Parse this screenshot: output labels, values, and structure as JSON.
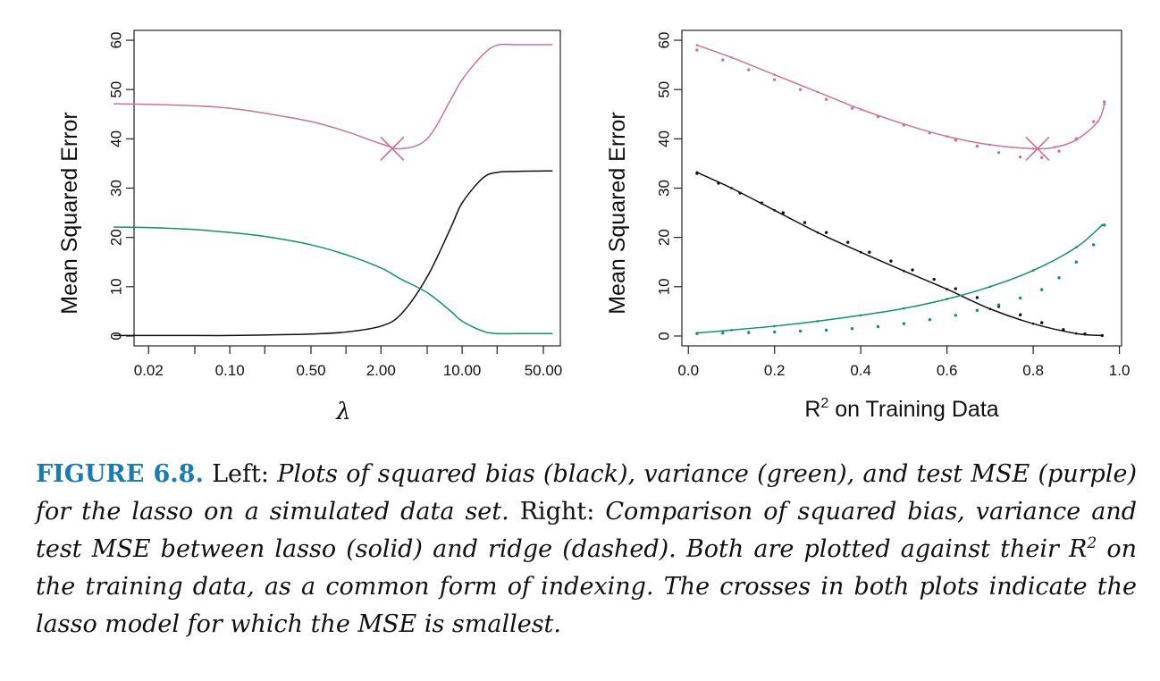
{
  "chart_data": [
    {
      "type": "line",
      "panel": "left",
      "xscale": "log",
      "x": [
        0.01,
        0.02,
        0.05,
        0.1,
        0.2,
        0.5,
        1.0,
        2.0,
        3.0,
        5.0,
        8.0,
        10.0,
        15.0,
        20.0,
        30.0,
        60.0
      ],
      "series": [
        {
          "name": "squared bias",
          "color": "#111111",
          "values": [
            0.1,
            0.1,
            0.1,
            0.1,
            0.2,
            0.4,
            0.8,
            2.0,
            4.5,
            12.0,
            22.0,
            27.0,
            32.0,
            33.2,
            33.4,
            33.5
          ]
        },
        {
          "name": "variance",
          "color": "#11906b",
          "values": [
            22.1,
            22.0,
            21.6,
            21.0,
            20.2,
            18.5,
            16.5,
            13.8,
            11.5,
            8.8,
            5.0,
            3.0,
            1.0,
            0.5,
            0.5,
            0.5
          ]
        },
        {
          "name": "test MSE",
          "color": "#c8739b",
          "values": [
            47.1,
            47.0,
            46.7,
            46.2,
            45.2,
            43.5,
            41.5,
            39.0,
            38.0,
            40.0,
            48.0,
            52.0,
            57.0,
            59.0,
            59.1,
            59.1
          ]
        }
      ],
      "cross": {
        "x": 2.5,
        "y": 38.0,
        "color": "#c8739b"
      },
      "xticks": [
        0.02,
        0.05,
        0.1,
        0.2,
        0.5,
        1.0,
        2.0,
        5.0,
        10.0,
        20.0,
        50.0
      ],
      "xtick_labels": [
        "0.02",
        "0.10",
        "0.50",
        "2.00",
        "10.00",
        "50.00"
      ],
      "xtick_label_values": [
        0.02,
        0.1,
        0.5,
        2.0,
        10.0,
        50.0
      ],
      "yticks": [
        0,
        10,
        20,
        30,
        40,
        50,
        60
      ],
      "xlim": [
        0.015,
        70
      ],
      "ylim": [
        -2,
        62
      ],
      "xlabel": "λ",
      "ylabel": "Mean Squared Error"
    },
    {
      "type": "line",
      "panel": "right",
      "xscale": "linear",
      "series": [
        {
          "name": "squared bias (lasso)",
          "style": "solid",
          "color": "#111111",
          "x": [
            0.02,
            0.1,
            0.2,
            0.3,
            0.4,
            0.5,
            0.6,
            0.7,
            0.8,
            0.9,
            0.96
          ],
          "values": [
            33.2,
            30.0,
            25.5,
            21.0,
            17.0,
            13.2,
            9.5,
            5.5,
            2.5,
            0.5,
            0.1
          ]
        },
        {
          "name": "variance (lasso)",
          "style": "solid",
          "color": "#11906b",
          "x": [
            0.02,
            0.1,
            0.2,
            0.3,
            0.4,
            0.5,
            0.6,
            0.7,
            0.8,
            0.9,
            0.96
          ],
          "values": [
            0.6,
            1.2,
            2.0,
            3.0,
            4.2,
            5.6,
            7.5,
            10.0,
            13.3,
            18.0,
            22.5
          ]
        },
        {
          "name": "test MSE (lasso)",
          "style": "solid",
          "color": "#c8739b",
          "x": [
            0.02,
            0.1,
            0.2,
            0.3,
            0.4,
            0.5,
            0.6,
            0.7,
            0.8,
            0.85,
            0.9,
            0.95,
            0.965
          ],
          "values": [
            59.0,
            56.5,
            53.0,
            49.5,
            46.0,
            43.0,
            40.5,
            38.8,
            38.0,
            38.3,
            39.8,
            43.5,
            47.0
          ]
        },
        {
          "name": "squared bias (ridge)",
          "style": "dotted",
          "color": "#111111",
          "x": [
            0.02,
            0.07,
            0.12,
            0.17,
            0.22,
            0.27,
            0.32,
            0.37,
            0.42,
            0.47,
            0.52,
            0.57,
            0.62,
            0.67,
            0.72,
            0.77,
            0.82,
            0.87,
            0.92,
            0.96
          ],
          "values": [
            33.0,
            31.0,
            29.0,
            27.0,
            25.0,
            23.0,
            21.0,
            19.0,
            17.0,
            15.2,
            13.4,
            11.5,
            9.6,
            7.8,
            6.0,
            4.3,
            2.7,
            1.3,
            0.4,
            0.1
          ]
        },
        {
          "name": "variance (ridge)",
          "style": "dotted",
          "color": "#11906b",
          "x": [
            0.02,
            0.08,
            0.14,
            0.2,
            0.26,
            0.32,
            0.38,
            0.44,
            0.5,
            0.56,
            0.62,
            0.67,
            0.72,
            0.77,
            0.82,
            0.86,
            0.9,
            0.94,
            0.965
          ],
          "values": [
            0.5,
            0.6,
            0.7,
            0.8,
            1.0,
            1.2,
            1.5,
            1.9,
            2.5,
            3.3,
            4.2,
            5.2,
            6.3,
            7.7,
            9.4,
            11.8,
            15.0,
            18.5,
            22.5
          ]
        },
        {
          "name": "test MSE (ridge)",
          "style": "dotted",
          "color": "#c8739b",
          "x": [
            0.02,
            0.08,
            0.14,
            0.2,
            0.26,
            0.32,
            0.38,
            0.44,
            0.5,
            0.56,
            0.62,
            0.67,
            0.72,
            0.77,
            0.82,
            0.86,
            0.9,
            0.94,
            0.965
          ],
          "values": [
            58.0,
            56.0,
            54.0,
            52.0,
            50.0,
            48.0,
            46.2,
            44.5,
            42.8,
            41.2,
            39.7,
            38.5,
            37.2,
            36.3,
            36.2,
            37.5,
            40.0,
            43.5,
            47.5
          ]
        }
      ],
      "cross": {
        "x": 0.81,
        "y": 38.0,
        "color": "#c8739b"
      },
      "xticks": [
        0.0,
        0.2,
        0.4,
        0.6,
        0.8,
        1.0
      ],
      "xtick_labels": [
        "0.0",
        "0.2",
        "0.4",
        "0.6",
        "0.8",
        "1.0"
      ],
      "yticks": [
        0,
        10,
        20,
        30,
        40,
        50,
        60
      ],
      "xlim": [
        -0.015,
        1.005
      ],
      "ylim": [
        -2,
        62
      ],
      "xlabel": "R",
      "xlabel_sup": "2",
      "xlabel_rest": " on Training Data",
      "ylabel": "Mean Squared Error"
    }
  ],
  "caption": {
    "label": "FIGURE 6.8.",
    "left_word": " Left: ",
    "text1": "Plots of squared bias (black), variance (green), and test MSE (purple) for the lasso on a simulated data set.",
    "right_word": " Right: ",
    "text2a": "Comparison of squared bias, variance and test MSE between lasso (solid) and ridge (dashed). Both are plotted against their ",
    "r_symbol": "R",
    "r_sup": "2",
    "text2b": " on the training data, as a common form of indexing. The crosses in both plots indicate the lasso model for which the MSE is smallest."
  }
}
